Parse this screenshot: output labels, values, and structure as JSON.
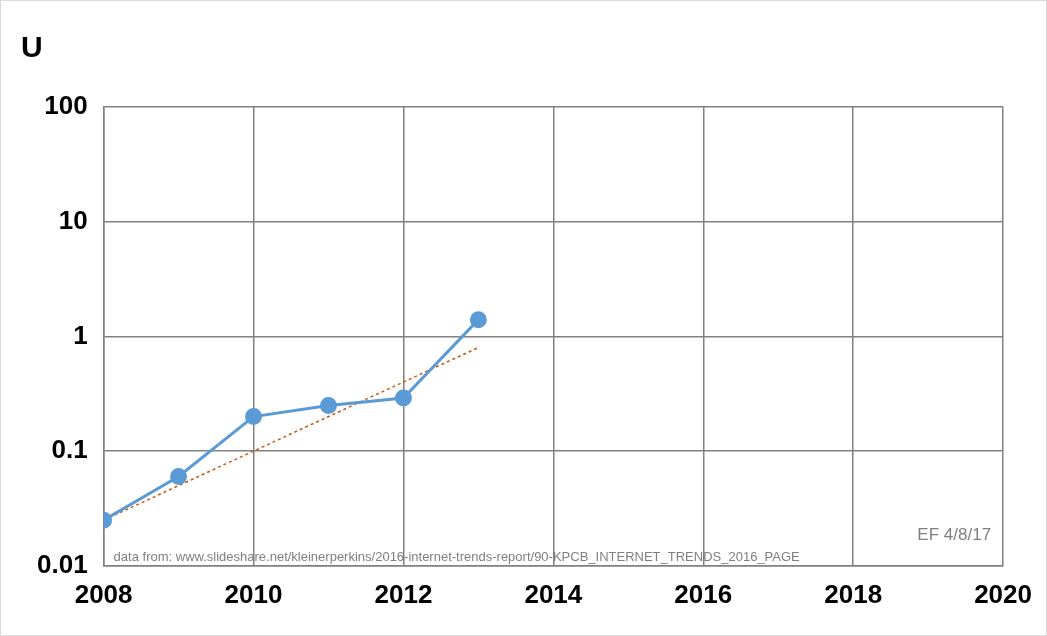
{
  "chart_data": {
    "type": "line",
    "title": "U",
    "series": [
      {
        "color": "#5b9bd5",
        "marker": "circle",
        "line_style": "solid",
        "x": [
          2008,
          2009,
          2010,
          2011,
          2012,
          2013
        ],
        "values": [
          0.025,
          0.06,
          0.2,
          0.25,
          0.29,
          1.4
        ]
      },
      {
        "color": "#c55a11",
        "marker": "none",
        "line_style": "dotted",
        "x": [
          2008,
          2013
        ],
        "values": [
          0.025,
          0.8
        ]
      }
    ],
    "xlim": [
      2008,
      2020
    ],
    "xticks": [
      2008,
      2010,
      2012,
      2014,
      2016,
      2018,
      2020
    ],
    "ylim": [
      0.01,
      100
    ],
    "yticks": [
      0.01,
      0.1,
      1,
      10,
      100
    ],
    "log": "y",
    "grid": true,
    "annotations": [
      "EF 4/8/17",
      "data from: www.slideshare.net/kleinerperkins/2016-internet-trends-report/90-KPCB_INTERNET_TRENDS_2016_PAGE"
    ]
  }
}
